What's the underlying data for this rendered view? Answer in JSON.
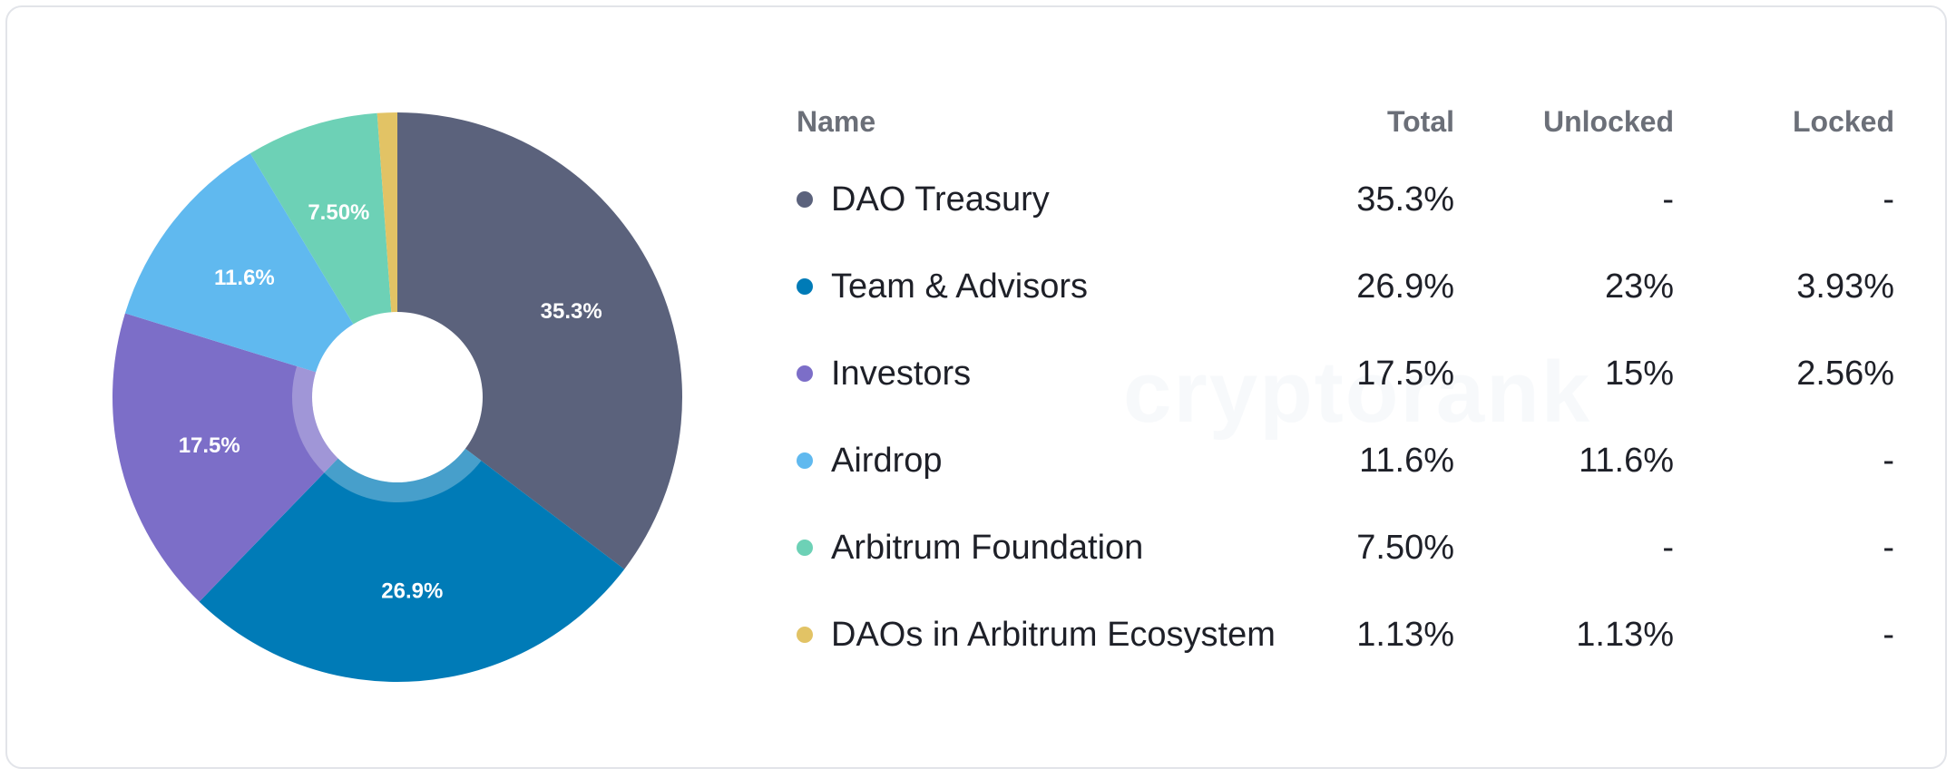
{
  "chart_data": {
    "type": "pie",
    "title": "",
    "categories": [
      "DAO Treasury",
      "Team & Advisors",
      "Investors",
      "Airdrop",
      "Arbitrum Foundation",
      "DAOs in Arbitrum Ecosystem"
    ],
    "values": [
      35.3,
      26.9,
      17.5,
      11.6,
      7.5,
      1.13
    ],
    "slice_labels": [
      "35.3%",
      "26.9%",
      "17.5%",
      "11.6%",
      "7.50%",
      ""
    ],
    "colors": [
      "#5b627c",
      "#007bb7",
      "#7c6ec8",
      "#60b9ef",
      "#6dd1b6",
      "#e2c365"
    ],
    "donut": true,
    "legend": "right"
  },
  "table": {
    "headers": {
      "name": "Name",
      "total": "Total",
      "unlocked": "Unlocked",
      "locked": "Locked"
    },
    "rows": [
      {
        "name": "DAO Treasury",
        "total": "35.3%",
        "unlocked": "-",
        "locked": "-",
        "color": "#5b627c"
      },
      {
        "name": "Team & Advisors",
        "total": "26.9%",
        "unlocked": "23%",
        "locked": "3.93%",
        "color": "#007bb7"
      },
      {
        "name": "Investors",
        "total": "17.5%",
        "unlocked": "15%",
        "locked": "2.56%",
        "color": "#7c6ec8"
      },
      {
        "name": "Airdrop",
        "total": "11.6%",
        "unlocked": "11.6%",
        "locked": "-",
        "color": "#60b9ef"
      },
      {
        "name": "Arbitrum Foundation",
        "total": "7.50%",
        "unlocked": "-",
        "locked": "-",
        "color": "#6dd1b6"
      },
      {
        "name": "DAOs in Arbitrum Ecosystem",
        "total": "1.13%",
        "unlocked": "1.13%",
        "locked": "-",
        "color": "#e2c365"
      }
    ]
  },
  "watermark": "cryptorank"
}
